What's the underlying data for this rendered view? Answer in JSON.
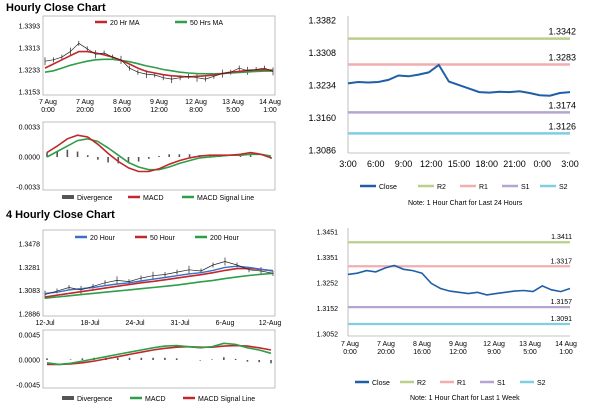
{
  "titles": {
    "hourly": "Hourly Close Chart",
    "four_hourly": "4 Hourly Close Chart"
  },
  "colors": {
    "close": "#1f5fa6",
    "ma_red": "#c0282b",
    "ma_green": "#2e9e48",
    "ma_blue": "#3a6fc4",
    "r2": "#b7d08b",
    "r1": "#f0aeb0",
    "s1": "#b6a4d0",
    "s2": "#7fcfe0",
    "frame": "#b0b0b0",
    "bar": "#555555"
  },
  "chart_data": [
    {
      "id": "hourly_price",
      "type": "line",
      "title": "Hourly Close Chart",
      "legend": [
        "20 Hr MA",
        "50 Hrs MA"
      ],
      "yticks": [
        "1.3393",
        "1.3313",
        "1.3233",
        "1.3153"
      ],
      "ylim": [
        1.3153,
        1.3393
      ],
      "xticks": [
        "7 Aug\n0:00",
        "7 Aug\n20:00",
        "8 Aug\n16:00",
        "9 Aug\n12:00",
        "12 Aug\n8:00",
        "13 Aug\n5:00",
        "14 Aug\n1:00"
      ],
      "series": [
        {
          "name": "Price",
          "values": [
            1.3265,
            1.327,
            1.328,
            1.33,
            1.333,
            1.331,
            1.329,
            1.3295,
            1.328,
            1.327,
            1.324,
            1.3225,
            1.3218,
            1.3215,
            1.3205,
            1.32,
            1.3205,
            1.321,
            1.3205,
            1.32,
            1.321,
            1.322,
            1.3225,
            1.324,
            1.323,
            1.3235,
            1.324,
            1.3228
          ]
        },
        {
          "name": "20 Hr MA",
          "values": [
            1.324,
            1.3255,
            1.327,
            1.3285,
            1.33,
            1.33,
            1.3295,
            1.3288,
            1.328,
            1.3268,
            1.3255,
            1.324,
            1.3228,
            1.3222,
            1.3216,
            1.3212,
            1.321,
            1.3208,
            1.321,
            1.3212,
            1.3215,
            1.322,
            1.3225,
            1.3228,
            1.3232,
            1.3233,
            1.3234,
            1.3232
          ]
        },
        {
          "name": "50 Hrs MA",
          "values": [
            1.3225,
            1.323,
            1.324,
            1.325,
            1.3258,
            1.3265,
            1.327,
            1.3272,
            1.3272,
            1.3268,
            1.3263,
            1.3256,
            1.3248,
            1.3242,
            1.3235,
            1.323,
            1.3225,
            1.3222,
            1.322,
            1.3219,
            1.3219,
            1.322,
            1.3222,
            1.3224,
            1.3226,
            1.3228,
            1.3229,
            1.3229
          ]
        }
      ]
    },
    {
      "id": "hourly_macd",
      "type": "line",
      "yticks": [
        "0.0033",
        "0.0000",
        "-0.0033"
      ],
      "ylim": [
        -0.0033,
        0.0033
      ],
      "legend": [
        "Divergence",
        "MACD",
        "MACD Signal Line"
      ],
      "series": [
        {
          "name": "MACD",
          "values": [
            0.0005,
            0.0012,
            0.002,
            0.0024,
            0.0022,
            0.0014,
            0.0004,
            -0.0005,
            -0.0012,
            -0.0016,
            -0.0016,
            -0.0013,
            -0.0008,
            -0.0004,
            -0.0001,
            0.0001,
            0.0002,
            0.0002,
            0.0002,
            0.0003,
            0.0005,
            0.0003,
            -0.0001
          ]
        },
        {
          "name": "MACD Signal Line",
          "values": [
            0.0,
            0.0006,
            0.0012,
            0.0018,
            0.002,
            0.0017,
            0.001,
            0.0002,
            -0.0006,
            -0.0011,
            -0.0014,
            -0.0014,
            -0.0011,
            -0.0007,
            -0.0004,
            -0.0001,
            0.0,
            0.0001,
            0.0002,
            0.0002,
            0.0003,
            0.0003,
            0.0001
          ]
        },
        {
          "name": "Divergence",
          "values": [
            0.0005,
            0.0006,
            0.0008,
            0.0006,
            0.0002,
            -0.0003,
            -0.0006,
            -0.0007,
            -0.0006,
            -0.0005,
            -0.0002,
            0.0001,
            0.0003,
            0.0003,
            0.0003,
            0.0002,
            0.0002,
            0.0001,
            0.0,
            0.0001,
            0.0002,
            0.0,
            -0.0002
          ]
        }
      ]
    },
    {
      "id": "hourly_close_24h",
      "type": "line",
      "yticks": [
        "1.3382",
        "1.3308",
        "1.3234",
        "1.3160",
        "1.3086"
      ],
      "ylim": [
        1.3086,
        1.3382
      ],
      "xticks": [
        "3:00",
        "6:00",
        "9:00",
        "12:00",
        "15:00",
        "18:00",
        "21:00",
        "0:00",
        "3:00"
      ],
      "levels": [
        {
          "name": "R2",
          "value": 1.3342,
          "label": "1.3342"
        },
        {
          "name": "R1",
          "value": 1.3283,
          "label": "1.3283"
        },
        {
          "name": "S1",
          "value": 1.3174,
          "label": "1.3174"
        },
        {
          "name": "S2",
          "value": 1.3126,
          "label": "1.3126"
        }
      ],
      "series": [
        {
          "name": "Close",
          "values": [
            1.324,
            1.3243,
            1.3242,
            1.3243,
            1.3248,
            1.3258,
            1.3256,
            1.326,
            1.3265,
            1.3282,
            1.3244,
            1.3236,
            1.3228,
            1.322,
            1.3219,
            1.3221,
            1.322,
            1.3222,
            1.3218,
            1.3213,
            1.3212,
            1.3218,
            1.322
          ]
        }
      ],
      "legend": [
        "Close",
        "R2",
        "R1",
        "S1",
        "S2"
      ],
      "note": "Note: 1 Hour Chart for Last 24 Hours"
    },
    {
      "id": "four_hourly_price",
      "type": "line",
      "title": "4 Hourly Close Chart",
      "legend": [
        "20 Hour",
        "50 Hour",
        "200 Hour"
      ],
      "yticks": [
        "1.3478",
        "1.3281",
        "1.3083",
        "1.2886"
      ],
      "ylim": [
        1.2886,
        1.3478
      ],
      "xticks": [
        "12-Jul",
        "18-Jul",
        "24-Jul",
        "31-Jul",
        "6-Aug",
        "12-Aug"
      ],
      "series": [
        {
          "name": "Price",
          "values": [
            1.305,
            1.308,
            1.311,
            1.309,
            1.312,
            1.315,
            1.317,
            1.316,
            1.319,
            1.321,
            1.322,
            1.324,
            1.326,
            1.325,
            1.33,
            1.333,
            1.33,
            1.326,
            1.325,
            1.323
          ]
        },
        {
          "name": "20 Hour",
          "values": [
            1.306,
            1.307,
            1.309,
            1.31,
            1.311,
            1.3125,
            1.314,
            1.315,
            1.3165,
            1.318,
            1.3195,
            1.321,
            1.3225,
            1.3235,
            1.3255,
            1.328,
            1.329,
            1.328,
            1.3265,
            1.325
          ]
        },
        {
          "name": "50 Hour",
          "values": [
            1.303,
            1.3045,
            1.306,
            1.3075,
            1.309,
            1.3105,
            1.312,
            1.3135,
            1.315,
            1.3162,
            1.3175,
            1.319,
            1.3205,
            1.3218,
            1.3235,
            1.3255,
            1.327,
            1.3272,
            1.3262,
            1.3252
          ]
        },
        {
          "name": "200 Hour",
          "values": [
            1.302,
            1.303,
            1.304,
            1.305,
            1.306,
            1.307,
            1.308,
            1.309,
            1.31,
            1.311,
            1.312,
            1.313,
            1.3145,
            1.3158,
            1.317,
            1.3185,
            1.32,
            1.3212,
            1.3222,
            1.323
          ]
        }
      ]
    },
    {
      "id": "four_hourly_macd",
      "type": "line",
      "yticks": [
        "0.0045",
        "0.0000",
        "-0.0045"
      ],
      "ylim": [
        -0.0045,
        0.0045
      ],
      "legend": [
        "Divergence",
        "MACD",
        "MACD Signal Line"
      ],
      "series": [
        {
          "name": "MACD",
          "values": [
            -0.0005,
            -0.0008,
            -0.0006,
            -0.0002,
            0.0002,
            0.0006,
            0.001,
            0.0014,
            0.0018,
            0.0022,
            0.0025,
            0.0026,
            0.0024,
            0.0022,
            0.0024,
            0.003,
            0.0028,
            0.0022,
            0.0018,
            0.0012
          ]
        },
        {
          "name": "MACD Signal Line",
          "values": [
            -0.0008,
            -0.0008,
            -0.0007,
            -0.0005,
            -0.0002,
            0.0002,
            0.0006,
            0.001,
            0.0014,
            0.0018,
            0.0021,
            0.0023,
            0.0024,
            0.0023,
            0.0023,
            0.0025,
            0.0026,
            0.0025,
            0.0022,
            0.0018
          ]
        },
        {
          "name": "Divergence",
          "values": [
            0.0003,
            0.0,
            0.0001,
            0.0003,
            0.0004,
            0.0004,
            0.0004,
            0.0004,
            0.0004,
            0.0004,
            0.0004,
            0.0003,
            0.0,
            -0.0001,
            0.0001,
            0.0005,
            0.0002,
            -0.0003,
            -0.0004,
            -0.0006
          ]
        }
      ]
    },
    {
      "id": "hourly_close_1w",
      "type": "line",
      "yticks": [
        "1.3451",
        "1.3351",
        "1.3252",
        "1.3152",
        "1.3052"
      ],
      "ylim": [
        1.3052,
        1.3451
      ],
      "xticks": [
        "7 Aug\n0:00",
        "7 Aug\n20:00",
        "8 Aug\n16:00",
        "9 Aug\n12:00",
        "12 Aug\n9:00",
        "13 Aug\n5:00",
        "14 Aug\n1:00"
      ],
      "levels": [
        {
          "name": "R2",
          "value": 1.3411,
          "label": "1.3411"
        },
        {
          "name": "R1",
          "value": 1.3317,
          "label": "1.3317"
        },
        {
          "name": "S1",
          "value": 1.3157,
          "label": "1.3157"
        },
        {
          "name": "S2",
          "value": 1.3091,
          "label": "1.3091"
        }
      ],
      "series": [
        {
          "name": "Close",
          "values": [
            1.3285,
            1.329,
            1.33,
            1.3295,
            1.331,
            1.332,
            1.3305,
            1.33,
            1.329,
            1.325,
            1.323,
            1.322,
            1.3215,
            1.321,
            1.3215,
            1.3205,
            1.321,
            1.3215,
            1.322,
            1.3222,
            1.3218,
            1.324,
            1.3225,
            1.3218,
            1.323
          ]
        }
      ],
      "legend": [
        "Close",
        "R2",
        "R1",
        "S1",
        "S2"
      ],
      "note": "Note: 1 Hour Chart for Last 1 Week"
    }
  ]
}
